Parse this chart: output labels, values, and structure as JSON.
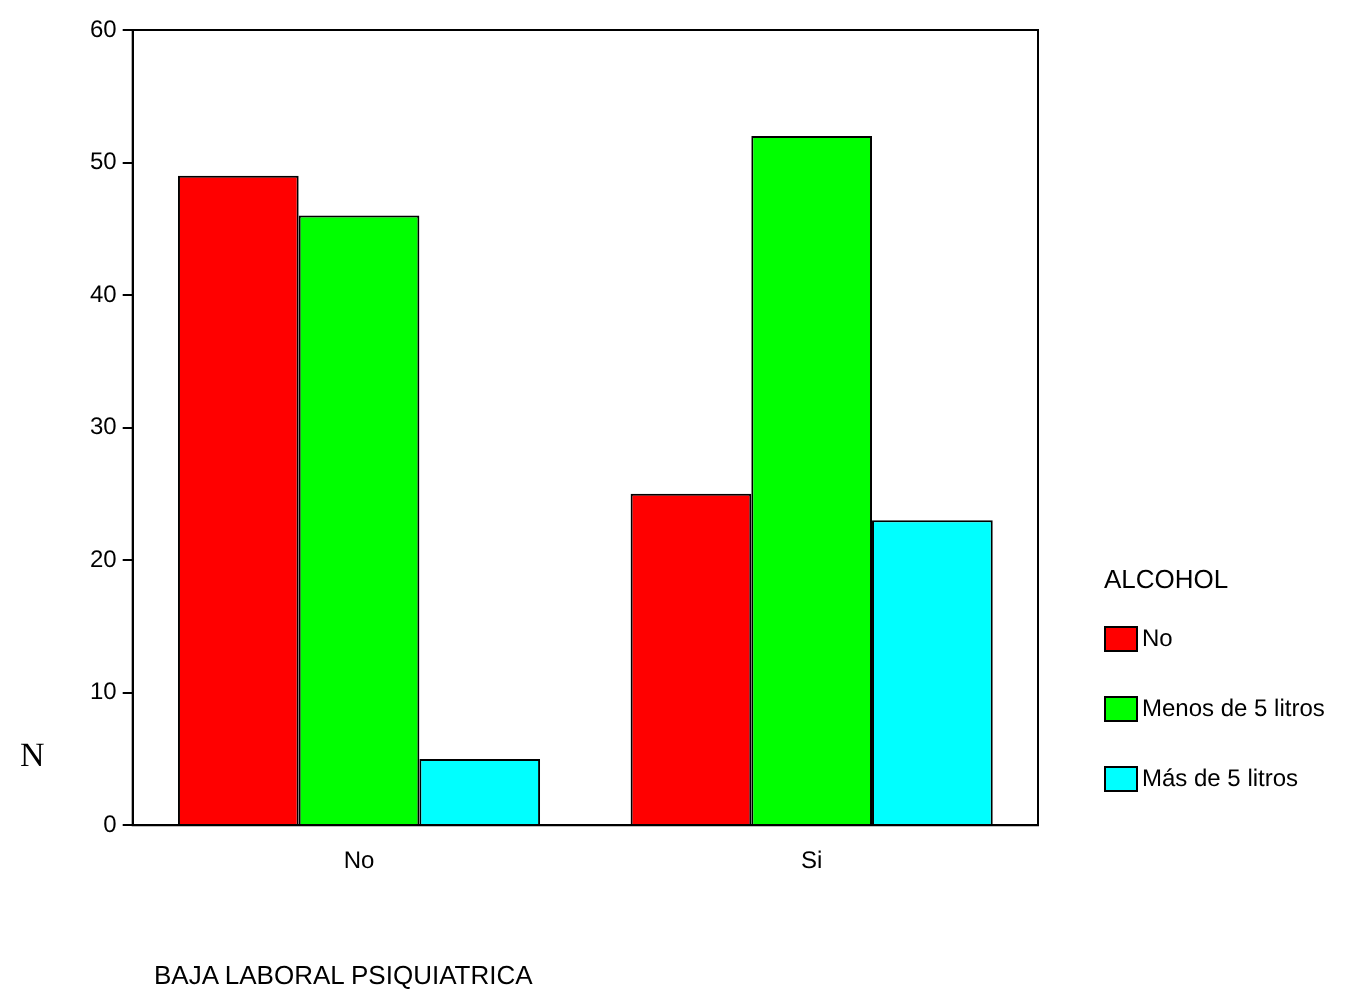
{
  "chart_data": {
    "type": "bar",
    "xlabel": "BAJA LABORAL PSIQUIATRICA",
    "ylabel": "N",
    "legend_title": "ALCOHOL",
    "legend": "right",
    "categories": [
      "No",
      "Si"
    ],
    "ylim": [
      0,
      60
    ],
    "yticks": [
      0,
      10,
      20,
      30,
      40,
      50,
      60
    ],
    "grid": false,
    "series": [
      {
        "name": "No",
        "color": "#ff0000",
        "values": [
          49,
          25
        ]
      },
      {
        "name": "Menos de 5 litros",
        "color": "#00ff00",
        "values": [
          46,
          52
        ]
      },
      {
        "name": "Más de 5 litros",
        "color": "#00ffff",
        "values": [
          5,
          23
        ]
      }
    ]
  }
}
